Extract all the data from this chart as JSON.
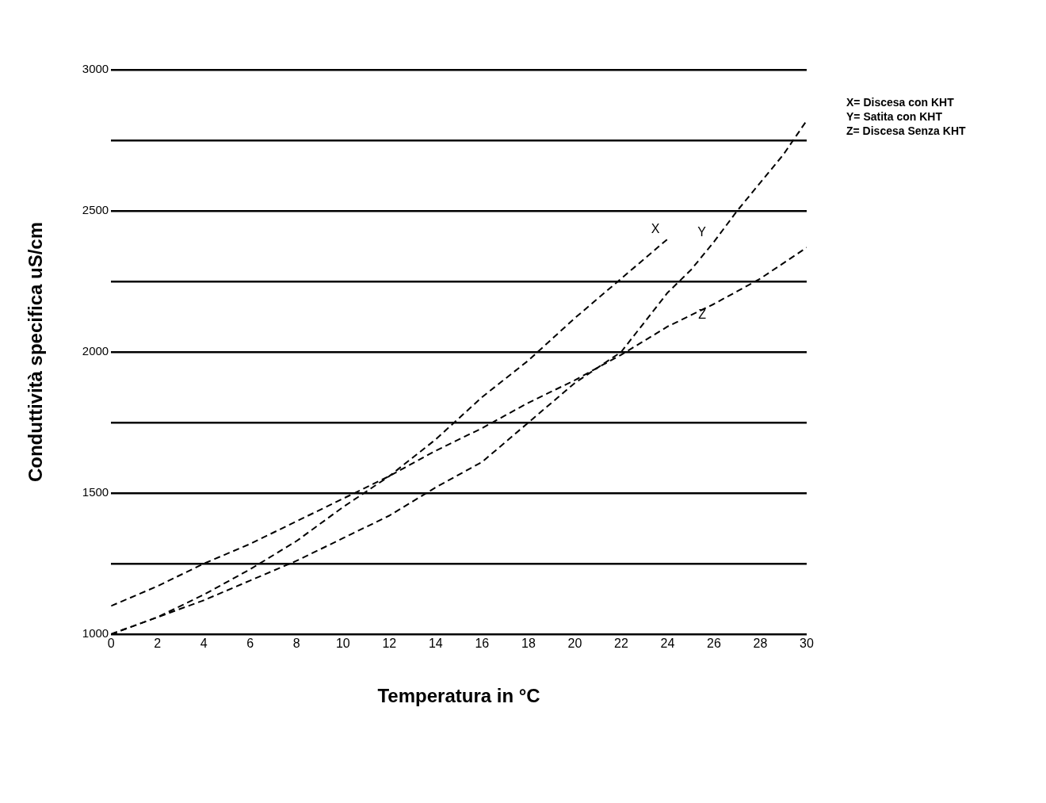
{
  "chart_data": {
    "type": "line",
    "xlabel": "Temperatura in °C",
    "ylabel": "Conduttività specifica uS/cm",
    "annotations": [
      "X= Discesa con KHT",
      "Y= Satita con KHT",
      "Z= Discesa Senza KHT"
    ],
    "xlim": [
      0,
      30
    ],
    "xticks": [
      0,
      2,
      4,
      6,
      8,
      10,
      12,
      14,
      16,
      18,
      20,
      22,
      24,
      26,
      28,
      30
    ],
    "ylim": [
      1000,
      3000
    ],
    "yticks": [
      1000,
      {
        "value": 1250,
        "label": null
      },
      1500,
      {
        "value": 1750,
        "label": null
      },
      2000,
      {
        "value": 2250,
        "label": null
      },
      2500,
      {
        "value": 2750,
        "label": null
      },
      3000
    ],
    "grid": "y",
    "legend": false,
    "marker": "none",
    "line_style": "dashed",
    "series": [
      {
        "name": "X",
        "color": "#000000",
        "x": [
          0,
          2,
          4,
          6,
          8,
          10,
          12,
          14,
          16,
          18,
          20,
          22,
          23,
          24
        ],
        "values": [
          1000,
          1060,
          1140,
          1230,
          1330,
          1450,
          1560,
          1690,
          1840,
          1970,
          2120,
          2260,
          2330,
          2400
        ]
      },
      {
        "name": "Y",
        "color": "#000000",
        "x": [
          0,
          2,
          4,
          6,
          8,
          10,
          12,
          14,
          16,
          18,
          20,
          22,
          24,
          25,
          26,
          27,
          28,
          29,
          30
        ],
        "values": [
          1000,
          1060,
          1120,
          1190,
          1260,
          1340,
          1420,
          1520,
          1610,
          1750,
          1890,
          2000,
          2210,
          2290,
          2390,
          2500,
          2600,
          2700,
          2820
        ]
      },
      {
        "name": "Z",
        "color": "#000000",
        "x": [
          0,
          2,
          4,
          6,
          8,
          10,
          12,
          14,
          16,
          18,
          20,
          22,
          24,
          26,
          28,
          30
        ],
        "values": [
          1100,
          1170,
          1250,
          1320,
          1400,
          1480,
          1560,
          1650,
          1730,
          1820,
          1900,
          1990,
          2090,
          2170,
          2260,
          2370
        ]
      }
    ]
  }
}
